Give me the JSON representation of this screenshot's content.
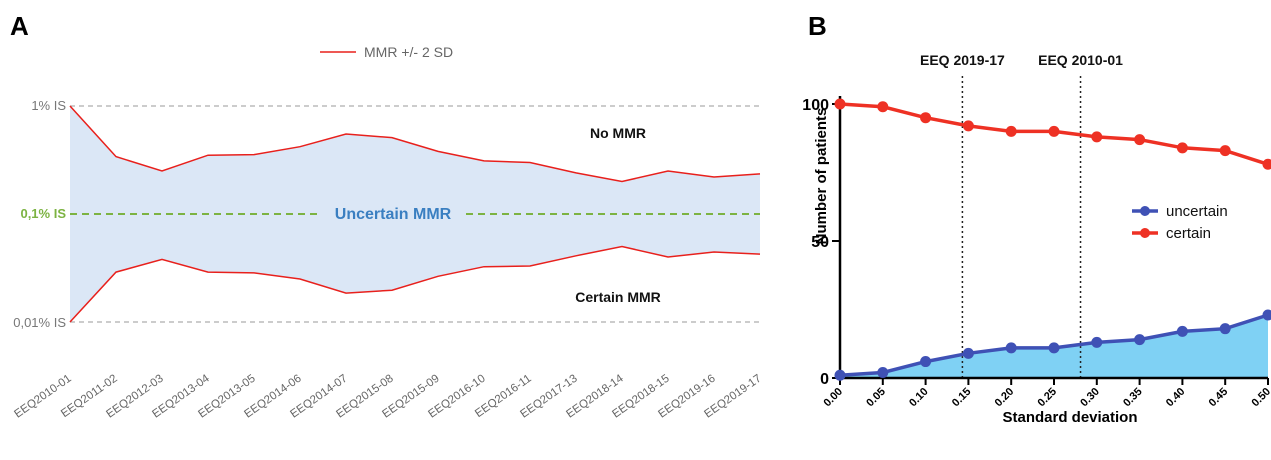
{
  "panel_a": {
    "letter": "A",
    "legend_label": "MMR +/- 2 SD",
    "y_labels": [
      "1% IS",
      "0,1% IS",
      "0,01% IS"
    ],
    "region_labels": {
      "top": "No MMR",
      "middle": "Uncertain MMR",
      "bottom": "Certain MMR"
    },
    "colors": {
      "line": "#e8201c",
      "band": "#dbe7f6",
      "threshold": "#7cb342",
      "middle_label": "#3a7fc1",
      "grid": "#999999"
    }
  },
  "panel_b": {
    "letter": "B",
    "vline_labels": [
      "EEQ 2019-17",
      "EEQ 2010-01"
    ],
    "colors": {
      "uncertain": "#3f51b5",
      "certain": "#ee3124",
      "area": "#7fd1f4"
    }
  },
  "chart_data": [
    {
      "type": "line",
      "title": "",
      "xlabel": "",
      "ylabel": "",
      "y_scale": "log",
      "ylim_percent_IS": [
        0.01,
        1
      ],
      "categories": [
        "EEQ2010-01",
        "EEQ2011-02",
        "EEQ2012-03",
        "EEQ2013-04",
        "EEQ2013-05",
        "EEQ2014-06",
        "EEQ2014-07",
        "EEQ2015-08",
        "EEQ2015-09",
        "EEQ2016-10",
        "EEQ2016-11",
        "EEQ2017-13",
        "EEQ2018-14",
        "EEQ2018-15",
        "EEQ2019-16",
        "EEQ2019-17"
      ],
      "series": [
        {
          "name": "MMR +/- 2 SD",
          "role": "upper",
          "values": [
            1.0,
            0.34,
            0.25,
            0.35,
            0.355,
            0.42,
            0.55,
            0.51,
            0.38,
            0.31,
            0.3,
            0.24,
            0.2,
            0.25,
            0.22,
            0.235
          ]
        },
        {
          "name": "MMR +/- 2 SD",
          "role": "lower",
          "values": [
            0.01,
            0.029,
            0.038,
            0.029,
            0.0285,
            0.025,
            0.0185,
            0.0197,
            0.0265,
            0.0325,
            0.033,
            0.041,
            0.05,
            0.04,
            0.0445,
            0.0425
          ]
        }
      ],
      "reference_lines": [
        1,
        0.1,
        0.01
      ],
      "legend": "top-center",
      "grid": false
    },
    {
      "type": "line",
      "title": "",
      "xlabel": "Standard deviation",
      "ylabel": "Number of patients",
      "x": [
        0.0,
        0.05,
        0.1,
        0.15,
        0.2,
        0.25,
        0.3,
        0.35,
        0.4,
        0.45,
        0.5
      ],
      "x_tick_labels": [
        "0.00",
        "0.05",
        "0.10",
        "0.15",
        "0.20",
        "0.25",
        "0.30",
        "0.35",
        "0.40",
        "0.45",
        "0.50"
      ],
      "y_ticks": [
        0,
        50,
        100
      ],
      "xlim": [
        0,
        0.5
      ],
      "ylim": [
        0,
        100
      ],
      "series": [
        {
          "name": "uncertain",
          "values": [
            1,
            2,
            6,
            9,
            11,
            11,
            13,
            14,
            17,
            18,
            23
          ]
        },
        {
          "name": "certain",
          "values": [
            100,
            99,
            95,
            92,
            90,
            90,
            88,
            87,
            84,
            83,
            78
          ]
        }
      ],
      "vertical_lines": [
        {
          "x": 0.143,
          "label": "EEQ 2019-17"
        },
        {
          "x": 0.281,
          "label": "EEQ 2010-01"
        }
      ],
      "legend": "right",
      "grid": false
    }
  ]
}
